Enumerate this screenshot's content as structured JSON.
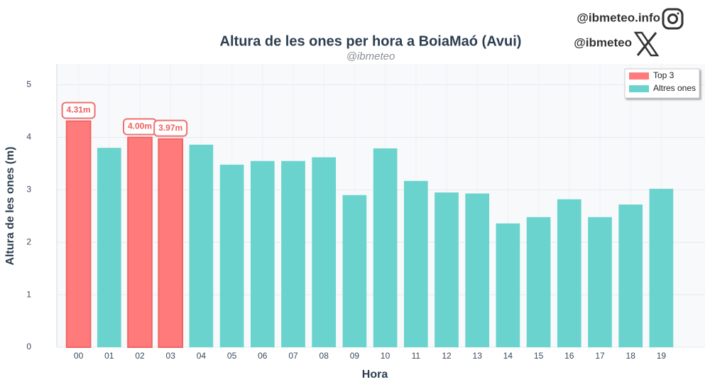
{
  "chart_data": {
    "type": "bar",
    "title": "Altura de les ones per hora a BoiaMaó (Avui)",
    "subtitle": "@ibmeteo",
    "branding": [
      "@ibmeteo.info",
      "@ibmeteo"
    ],
    "x_label": "Hora",
    "y_label": "Altura de les ones (m)",
    "categories": [
      "00",
      "01",
      "02",
      "03",
      "04",
      "05",
      "06",
      "07",
      "08",
      "09",
      "10",
      "11",
      "12",
      "13",
      "14",
      "15",
      "16",
      "17",
      "18",
      "19"
    ],
    "series": [
      {
        "name": "Top 3",
        "color": "#ff7b7b",
        "values": [
          4.31,
          null,
          4.0,
          3.97,
          null,
          null,
          null,
          null,
          null,
          null,
          null,
          null,
          null,
          null,
          null,
          null,
          null,
          null,
          null,
          null
        ],
        "value_labels": [
          "4.31m",
          null,
          "4.00m",
          "3.97m",
          null,
          null,
          null,
          null,
          null,
          null,
          null,
          null,
          null,
          null,
          null,
          null,
          null,
          null,
          null,
          null
        ]
      },
      {
        "name": "Altres ones",
        "color": "#6bd3cd",
        "values": [
          null,
          3.8,
          null,
          null,
          3.86,
          3.48,
          3.55,
          3.55,
          3.62,
          2.9,
          3.79,
          3.17,
          2.95,
          2.93,
          2.36,
          2.48,
          2.82,
          2.48,
          2.72,
          3.02
        ]
      }
    ],
    "ylim": [
      0,
      5.4
    ],
    "yticks": [
      0,
      1,
      2,
      3,
      4,
      5
    ],
    "grid": true,
    "legend": "upper right"
  }
}
